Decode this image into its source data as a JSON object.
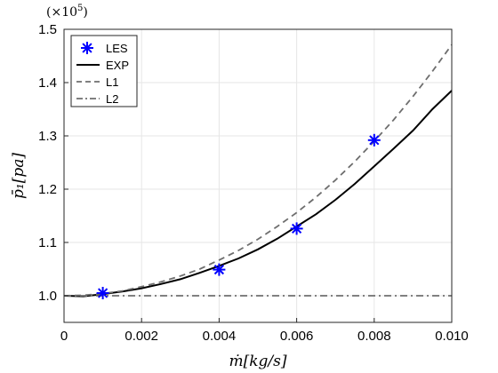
{
  "chart_data": {
    "type": "line",
    "multiplier": "(×10",
    "multiplier_exp": "5",
    "multiplier_close": ")",
    "xlabel": "ṁ[kg/s]",
    "ylabel": "p̄₁[pa]",
    "xlim": [
      0,
      0.01
    ],
    "ylim": [
      0.95,
      1.5
    ],
    "xticks": [
      "0",
      "0.002",
      "0.004",
      "0.006",
      "0.008",
      "0.010"
    ],
    "xtick_values": [
      0,
      0.002,
      0.004,
      0.006,
      0.008,
      0.01
    ],
    "yticks": [
      "1.0",
      "1.1",
      "1.2",
      "1.3",
      "1.4",
      "1.5"
    ],
    "ytick_values": [
      1.0,
      1.1,
      1.2,
      1.3,
      1.4,
      1.5
    ],
    "grid": true,
    "legend_position": "top-left",
    "series": [
      {
        "name": "LES",
        "style": "markers",
        "marker": "asterisk",
        "color": "#0000ff",
        "x": [
          0.001,
          0.004,
          0.006,
          0.008
        ],
        "y": [
          1.005,
          1.049,
          1.126,
          1.292
        ]
      },
      {
        "name": "EXP",
        "style": "solid",
        "color": "#000000",
        "x": [
          0,
          0.0005,
          0.001,
          0.0015,
          0.002,
          0.0025,
          0.003,
          0.0035,
          0.004,
          0.0045,
          0.005,
          0.0055,
          0.006,
          0.0065,
          0.007,
          0.0075,
          0.008,
          0.0085,
          0.009,
          0.0095,
          0.01
        ],
        "y": [
          1.0,
          0.999,
          1.003,
          1.008,
          1.014,
          1.022,
          1.031,
          1.043,
          1.056,
          1.07,
          1.087,
          1.107,
          1.13,
          1.153,
          1.18,
          1.21,
          1.243,
          1.276,
          1.31,
          1.35,
          1.385
        ]
      },
      {
        "name": "L1",
        "style": "dashed",
        "color": "#6e6e6e",
        "x": [
          0,
          0.0005,
          0.001,
          0.0015,
          0.002,
          0.0025,
          0.003,
          0.0035,
          0.004,
          0.0045,
          0.005,
          0.0055,
          0.006,
          0.0065,
          0.007,
          0.0075,
          0.008,
          0.0085,
          0.009,
          0.0095,
          0.01
        ],
        "y": [
          1.0,
          1.001,
          1.004,
          1.009,
          1.017,
          1.026,
          1.037,
          1.05,
          1.067,
          1.085,
          1.106,
          1.13,
          1.156,
          1.185,
          1.217,
          1.252,
          1.29,
          1.33,
          1.374,
          1.421,
          1.471
        ]
      },
      {
        "name": "L2",
        "style": "dashdot",
        "color": "#6e6e6e",
        "x": [
          0,
          0.01
        ],
        "y": [
          1.0,
          1.0
        ]
      }
    ]
  },
  "colors": {
    "axis": "#262626",
    "grid": "#e6e6e6",
    "les": "#0000ff",
    "exp": "#000000",
    "model": "#6e6e6e"
  }
}
